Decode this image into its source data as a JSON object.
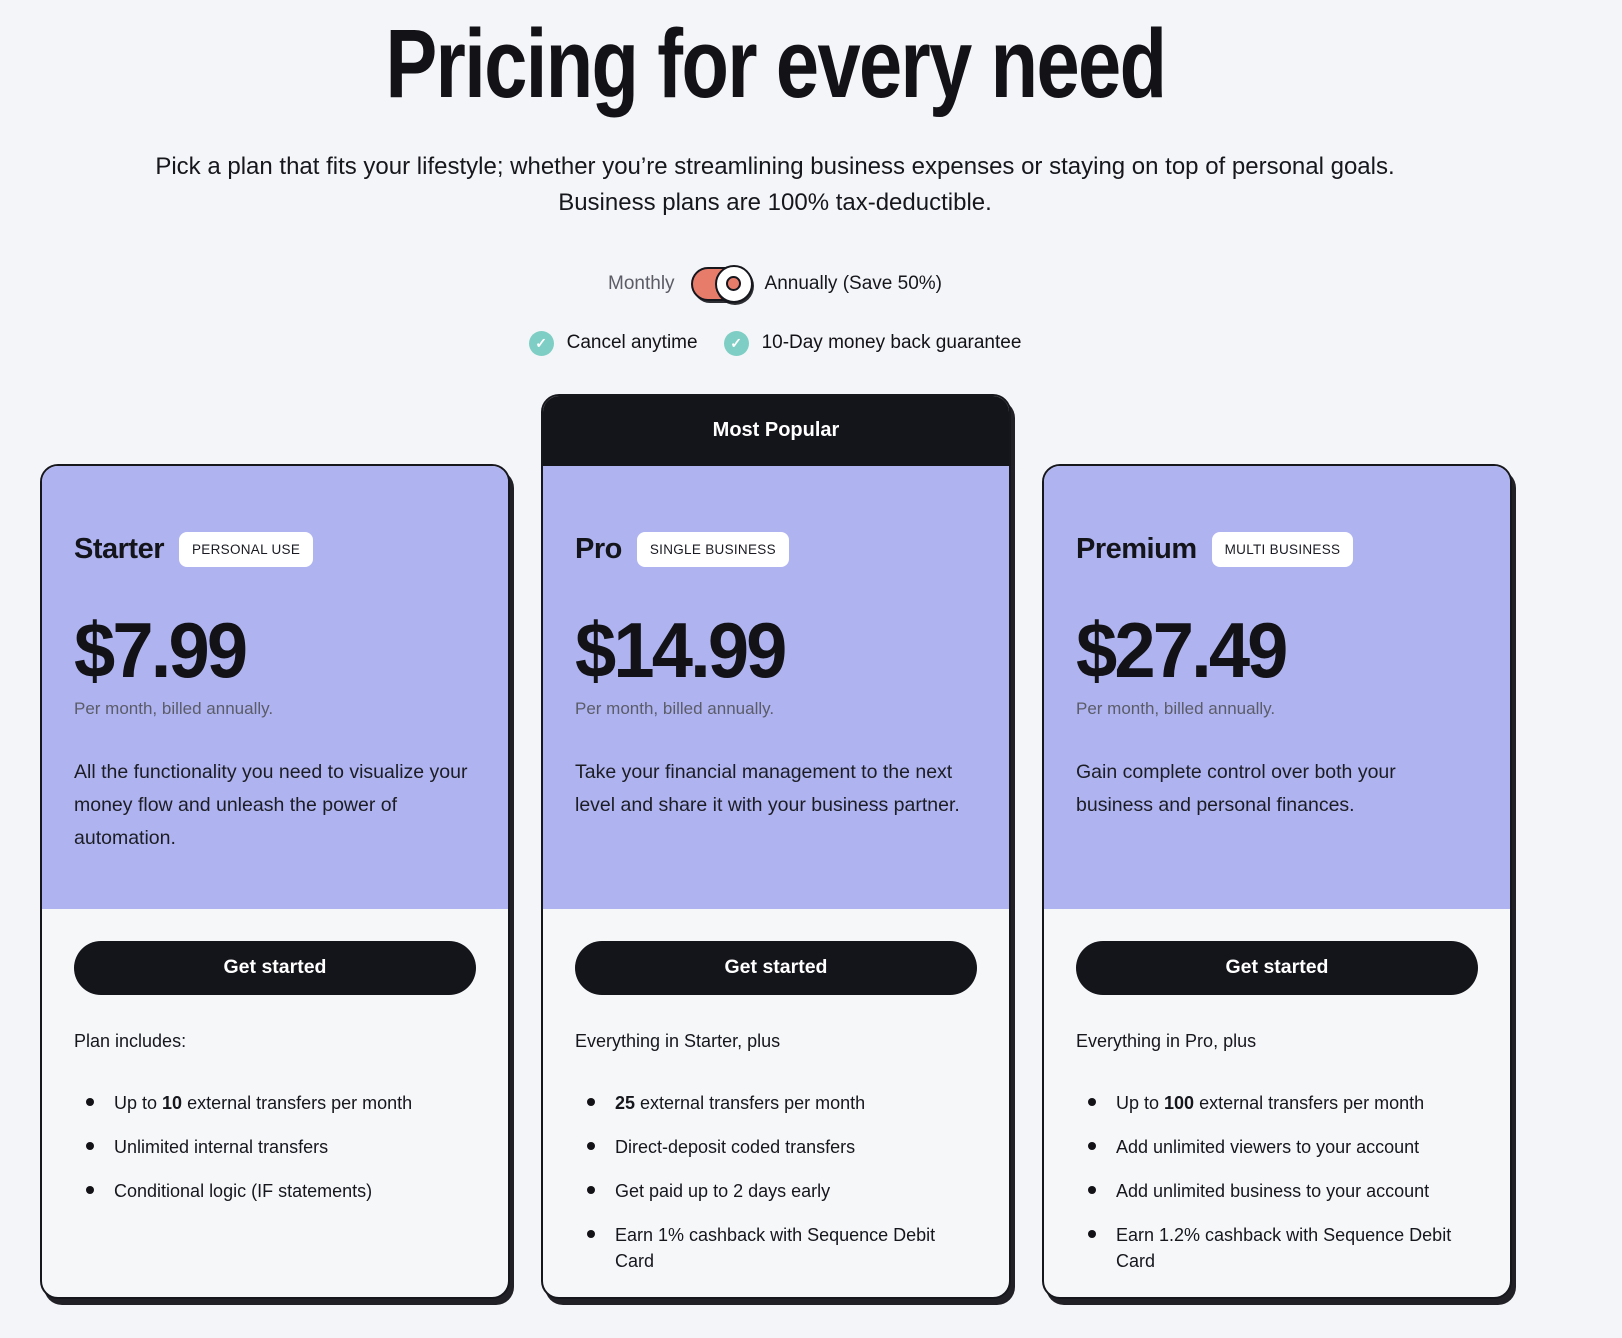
{
  "header": {
    "title": "Pricing for every need",
    "subtitle": "Pick a plan that fits your lifestyle; whether you’re streamlining business expenses or staying on top of personal goals. Business plans are 100% tax-deductible."
  },
  "billing_toggle": {
    "monthly_label": "Monthly",
    "annually_label": "Annually (Save 50%)",
    "selected": "annually",
    "toggle_color": "#E87C6B"
  },
  "guarantees": [
    {
      "icon": "check-circle-icon",
      "label": "Cancel anytime"
    },
    {
      "icon": "check-circle-icon",
      "label": "10-Day money back guarantee"
    }
  ],
  "most_popular_label": "Most Popular",
  "colors": {
    "card_header_bg": "#AFB4F1",
    "dark": "#16161D",
    "toggle_coral": "#E87C6B",
    "check_teal": "#7ECEC5",
    "page_bg": "#F4F5F8"
  },
  "cards": [
    {
      "name": "Starter",
      "badge": "PERSONAL USE",
      "price": "$7.99",
      "billing_note": "Per month, billed annually.",
      "description": "All the functionality you need to visualize your money flow and unleash the power of automation.",
      "cta": "Get started",
      "features_intro": "Plan includes:",
      "features": [
        {
          "pre": "Up to ",
          "strong": "10",
          "post": " external transfers per month"
        },
        {
          "pre": "Unlimited internal transfers",
          "strong": "",
          "post": ""
        },
        {
          "pre": "Conditional logic (IF statements)",
          "strong": "",
          "post": ""
        }
      ]
    },
    {
      "name": "Pro",
      "badge": "SINGLE BUSINESS",
      "price": "$14.99",
      "billing_note": "Per month, billed annually.",
      "description": "Take your financial management to the next level and share it with your business partner.",
      "cta": "Get started",
      "features_intro": "Everything in Starter, plus",
      "features": [
        {
          "pre": "",
          "strong": "25",
          "post": " external transfers per month"
        },
        {
          "pre": "Direct-deposit coded transfers",
          "strong": "",
          "post": ""
        },
        {
          "pre": "Get paid up to 2 days early",
          "strong": "",
          "post": ""
        },
        {
          "pre": "Earn 1% cashback with Sequence Debit Card",
          "strong": "",
          "post": ""
        }
      ]
    },
    {
      "name": "Premium",
      "badge": "MULTI BUSINESS",
      "price": "$27.49",
      "billing_note": "Per month, billed annually.",
      "description": "Gain complete control over both your business and personal finances.",
      "cta": "Get started",
      "features_intro": "Everything in Pro, plus",
      "features": [
        {
          "pre": "Up to ",
          "strong": "100",
          "post": " external transfers per month"
        },
        {
          "pre": "Add unlimited viewers to your account",
          "strong": "",
          "post": ""
        },
        {
          "pre": "Add unlimited business to your account",
          "strong": "",
          "post": ""
        },
        {
          "pre": "Earn 1.2% cashback with Sequence Debit Card",
          "strong": "",
          "post": ""
        }
      ]
    }
  ]
}
